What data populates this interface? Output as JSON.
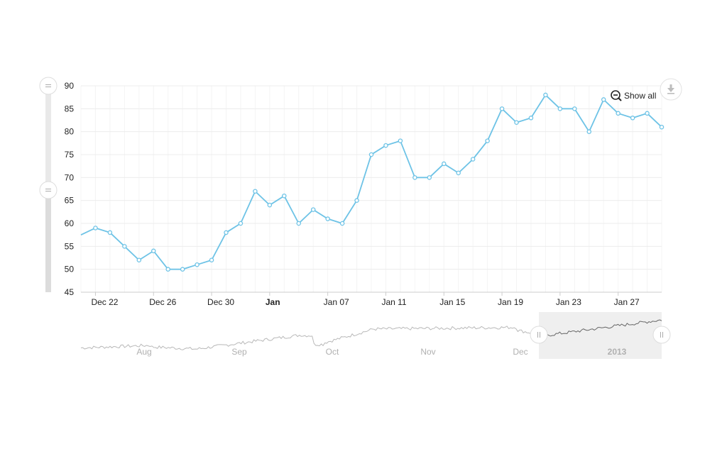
{
  "chart_data": {
    "type": "line",
    "x": [
      "Dec 21",
      "Dec 22",
      "Dec 23",
      "Dec 24",
      "Dec 25",
      "Dec 26",
      "Dec 27",
      "Dec 28",
      "Dec 29",
      "Dec 30",
      "Dec 31",
      "Jan 01",
      "Jan 02",
      "Jan 03",
      "Jan 04",
      "Jan 05",
      "Jan 06",
      "Jan 07",
      "Jan 08",
      "Jan 09",
      "Jan 10",
      "Jan 11",
      "Jan 12",
      "Jan 13",
      "Jan 14",
      "Jan 15",
      "Jan 16",
      "Jan 17",
      "Jan 18",
      "Jan 19",
      "Jan 20",
      "Jan 21",
      "Jan 22",
      "Jan 23",
      "Jan 24",
      "Jan 25",
      "Jan 26",
      "Jan 27",
      "Jan 28",
      "Jan 29",
      "Jan 30"
    ],
    "series": [
      {
        "values": [
          57.5,
          59,
          58,
          55,
          52,
          54,
          50,
          50,
          51,
          52,
          58,
          60,
          67,
          64,
          66,
          60,
          63,
          61,
          60,
          65,
          75,
          77,
          78,
          70,
          70,
          73,
          71,
          74,
          78,
          85,
          82,
          83,
          88,
          85,
          85,
          80,
          87,
          84,
          83,
          84,
          81
        ]
      }
    ],
    "ylim": [
      45,
      90
    ],
    "y_ticks": [
      "45",
      "50",
      "55",
      "60",
      "65",
      "70",
      "75",
      "80",
      "85",
      "90"
    ],
    "x_ticks": [
      {
        "label": "Dec 22",
        "bold": false
      },
      {
        "label": "Dec 26",
        "bold": false
      },
      {
        "label": "Dec 30",
        "bold": false
      },
      {
        "label": "Jan",
        "bold": true
      },
      {
        "label": "Jan 07",
        "bold": false
      },
      {
        "label": "Jan 11",
        "bold": false
      },
      {
        "label": "Jan 15",
        "bold": false
      },
      {
        "label": "Jan 19",
        "bold": false
      },
      {
        "label": "Jan 23",
        "bold": false
      },
      {
        "label": "Jan 27",
        "bold": false
      }
    ],
    "navigator_labels": [
      "Aug",
      "Sep",
      "Oct",
      "Nov",
      "Dec",
      "2013"
    ],
    "grid": true,
    "colors": {
      "line": "#6ec3e6",
      "navigator_line": "#b8b8b8",
      "navigator_selected_line": "#666666"
    }
  },
  "controls": {
    "show_all_label": "Show all",
    "zoom_out_icon": "zoom-out-icon",
    "download_icon": "download-icon",
    "slider_handle_icon": "grip-lines-icon"
  }
}
